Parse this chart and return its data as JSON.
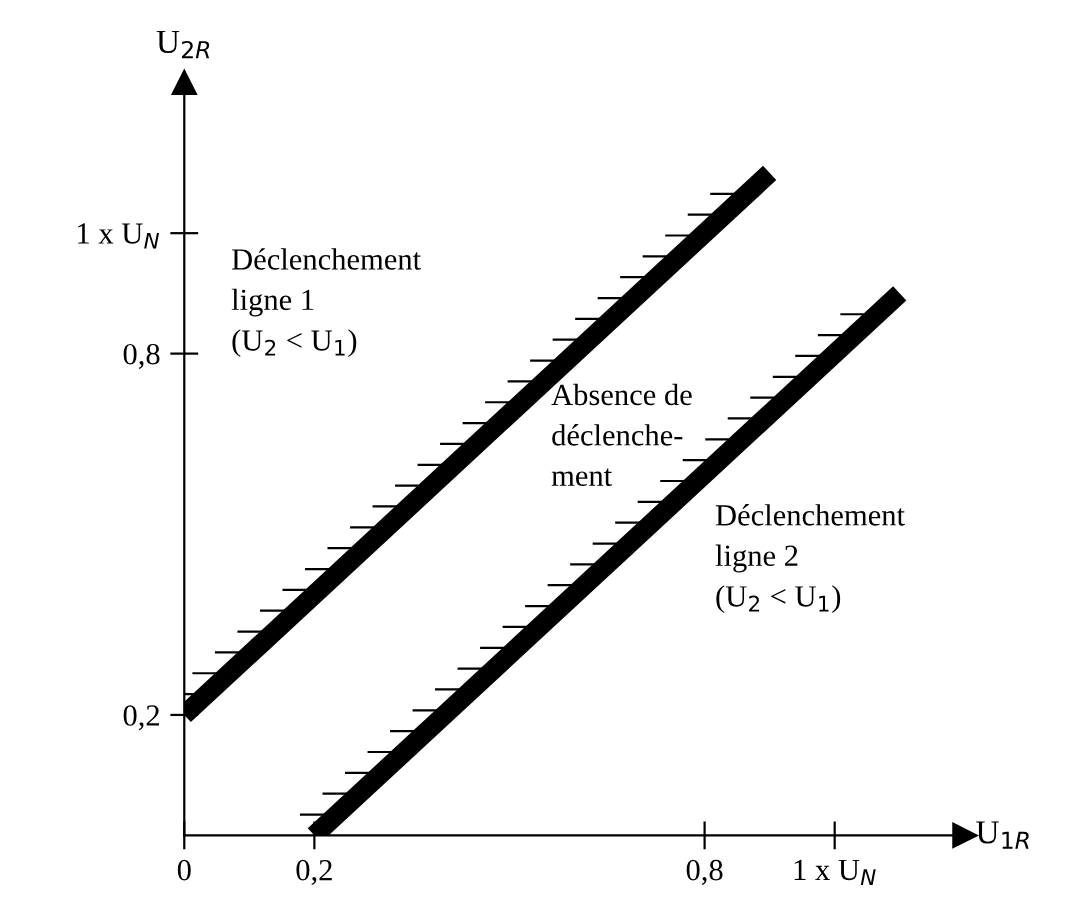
{
  "chart_data": {
    "type": "line",
    "xlabel": "U$_{1R}$",
    "ylabel": "U$_{2R}$",
    "series": [
      {
        "color": "#000000",
        "x": [
          0,
          0.9
        ],
        "values": [
          0.2,
          1.1
        ]
      },
      {
        "color": "#000000",
        "x": [
          0.2,
          1.1
        ],
        "values": [
          0,
          0.9
        ]
      }
    ],
    "xlim": [
      0,
      1.2
    ],
    "ylim": [
      0,
      1.25
    ],
    "xticks": [
      {
        "value": 0,
        "label": "0"
      },
      {
        "value": 0.2,
        "label": "0,2"
      },
      {
        "value": 0.8,
        "label": "0,8"
      },
      {
        "value": 1,
        "label": "1 x U$_{N}$"
      }
    ],
    "yticks": [
      {
        "value": 0.2,
        "label": "0,2"
      },
      {
        "value": 0.8,
        "label": "0,8"
      },
      {
        "value": 1,
        "label": "1 x U$_{N}$"
      }
    ],
    "annotations": [
      "Déclenchement\nligne 1\n(U$_{2}$ < U$_{1}$)",
      "Absence de\ndéclenche-\nment",
      "Déclenchement\nligne 2\n(U$_{2}$ < U$_{1}$)"
    ],
    "grid": false,
    "marker": "none",
    "line_style": "solid"
  }
}
